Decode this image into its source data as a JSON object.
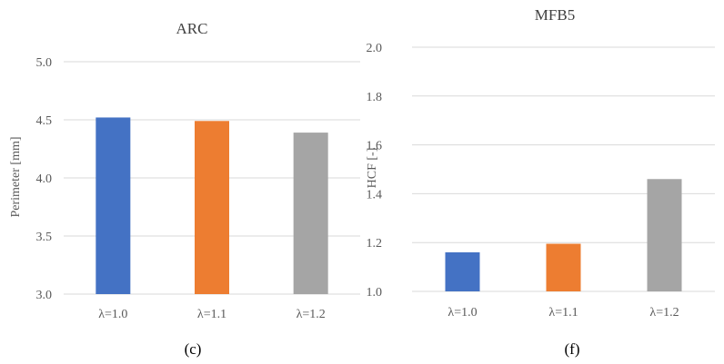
{
  "chart_data": [
    {
      "type": "bar",
      "title": "ARC",
      "ylabel": "Perimeter [mm]",
      "xlabel": "",
      "categories": [
        "λ=1.0",
        "λ=1.1",
        "λ=1.2"
      ],
      "values": [
        4.52,
        4.49,
        4.39
      ],
      "colors": [
        "#4472c4",
        "#ed7d31",
        "#a5a5a5"
      ],
      "ylim": [
        3.0,
        5.0
      ],
      "yticks": [
        "3.0",
        "3.5",
        "4.0",
        "4.5",
        "5.0"
      ],
      "grid": true,
      "caption": "(c)"
    },
    {
      "type": "bar",
      "title": "MFB5",
      "ylabel": "HCF [-]",
      "xlabel": "",
      "categories": [
        "λ=1.0",
        "λ=1.1",
        "λ=1.2"
      ],
      "values": [
        1.16,
        1.195,
        1.46
      ],
      "colors": [
        "#4472c4",
        "#ed7d31",
        "#a5a5a5"
      ],
      "ylim": [
        1.0,
        2.0
      ],
      "yticks": [
        "1.0",
        "1.2",
        "1.4",
        "1.6",
        "1.8",
        "2.0"
      ],
      "grid": true,
      "caption": "(f)"
    }
  ]
}
